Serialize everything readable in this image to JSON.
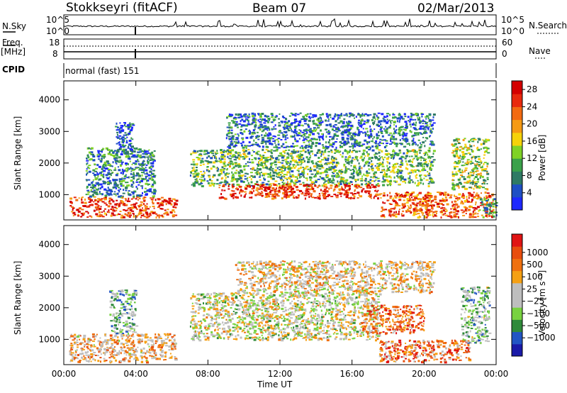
{
  "header": {
    "station": "Stokkseyri (fitACF)",
    "beam": "Beam 07",
    "date": "02/Mar/2013"
  },
  "strips": {
    "nsky_label": "N.Sky",
    "nsky_top_tick": "10^5",
    "nsky_bottom_tick": "10^0",
    "nsearch_label": "N.Search",
    "nsearch_top_tick": "10^5",
    "nsearch_bottom_tick": "10^0",
    "freq_label": "Freq.",
    "freq_unit": "[MHz]",
    "freq_top_tick": "18",
    "freq_bottom_tick": "8",
    "nave_label": "Nave",
    "nave_top_tick": "60",
    "nave_bottom_tick": "0",
    "cpid_label": "CPID",
    "cpid_value": "normal (fast) 151"
  },
  "colors": {
    "background": "#ffffff",
    "grid": "#000000"
  },
  "chart_data": [
    {
      "type": "heatmap",
      "panel": "power",
      "ylabel": "Slant Range [km]",
      "xlabel": "",
      "x_ticks": [
        "00:00",
        "04:00",
        "08:00",
        "12:00",
        "16:00",
        "20:00",
        "00:00"
      ],
      "y_ticks": [
        1000,
        2000,
        3000,
        4000
      ],
      "ylim": [
        200,
        4600
      ],
      "colorbar": {
        "label": "Power [dB]",
        "ticks": [
          4,
          8,
          12,
          16,
          20,
          24,
          28
        ],
        "range": [
          0,
          30
        ],
        "colors": [
          "#1e28ff",
          "#1f4fc4",
          "#2f7a64",
          "#3aa14a",
          "#7fd226",
          "#f5d20a",
          "#f59a14",
          "#f26a12",
          "#e8290e",
          "#d40000"
        ]
      },
      "regions": [
        {
          "t0": 0.3,
          "t1": 6.2,
          "r0": 300,
          "r1": 950,
          "level": 0.82
        },
        {
          "t0": 1.2,
          "t1": 5.0,
          "r0": 950,
          "r1": 2500,
          "level": 0.25
        },
        {
          "t0": 2.8,
          "t1": 3.8,
          "r0": 2300,
          "r1": 3300,
          "level": 0.18
        },
        {
          "t0": 7.0,
          "t1": 20.5,
          "r0": 1300,
          "r1": 2450,
          "level": 0.38
        },
        {
          "t0": 8.5,
          "t1": 17.5,
          "r0": 900,
          "r1": 1350,
          "level": 0.86
        },
        {
          "t0": 9.0,
          "t1": 20.5,
          "r0": 2500,
          "r1": 3600,
          "level": 0.22
        },
        {
          "t0": 17.5,
          "t1": 23.8,
          "r0": 300,
          "r1": 1100,
          "level": 0.78
        },
        {
          "t0": 21.5,
          "t1": 23.5,
          "r0": 1200,
          "r1": 2800,
          "level": 0.45
        },
        {
          "t0": 23.0,
          "t1": 24.0,
          "r0": 300,
          "r1": 900,
          "level": 0.3
        }
      ]
    },
    {
      "type": "heatmap",
      "panel": "velocity",
      "ylabel": "Slant Range [km]",
      "xlabel": "Time UT",
      "x_ticks": [
        "00:00",
        "04:00",
        "08:00",
        "12:00",
        "16:00",
        "20:00",
        "00:00"
      ],
      "y_ticks": [
        1000,
        2000,
        3000,
        4000
      ],
      "ylim": [
        200,
        4600
      ],
      "colorbar": {
        "label": "Velocity [m s⁻¹]",
        "ticks": [
          1000,
          500,
          100,
          25,
          -25,
          -100,
          -500,
          -1000
        ],
        "colors": [
          "#1a1aa8",
          "#2255c4",
          "#2f8a3a",
          "#78d240",
          "#bebebe",
          "#bebebe",
          "#f5a014",
          "#ef7010",
          "#e84d0e",
          "#e01414"
        ]
      },
      "regions": [
        {
          "t0": 0.3,
          "t1": 6.2,
          "r0": 300,
          "r1": 1200,
          "level": 0.62
        },
        {
          "t0": 2.5,
          "t1": 4.0,
          "r0": 1200,
          "r1": 2600,
          "level": 0.35
        },
        {
          "t0": 7.0,
          "t1": 17.5,
          "r0": 1000,
          "r1": 2500,
          "level": 0.5
        },
        {
          "t0": 9.5,
          "t1": 20.5,
          "r0": 2500,
          "r1": 3500,
          "level": 0.58
        },
        {
          "t0": 16.5,
          "t1": 20.0,
          "r0": 1200,
          "r1": 2100,
          "level": 0.78
        },
        {
          "t0": 17.5,
          "t1": 22.5,
          "r0": 300,
          "r1": 1000,
          "level": 0.76
        },
        {
          "t0": 22.0,
          "t1": 23.6,
          "r0": 900,
          "r1": 2700,
          "level": 0.38
        }
      ]
    }
  ]
}
